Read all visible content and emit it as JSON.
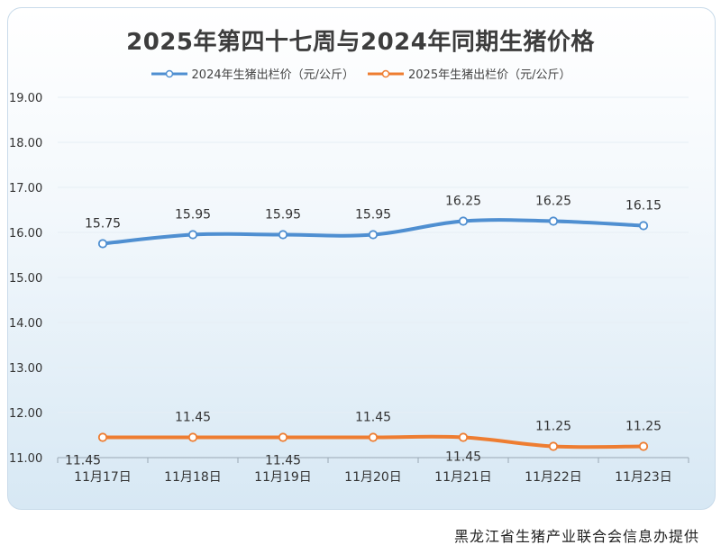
{
  "chart_data": {
    "type": "line",
    "title": "2025年第四十七周与2024年同期生猪价格",
    "categories": [
      "11月17日",
      "11月18日",
      "11月19日",
      "11月20日",
      "11月21日",
      "11月22日",
      "11月23日"
    ],
    "series": [
      {
        "name": "2024年生猪出栏价（元/公斤）",
        "color": "#4f8fd1",
        "values": [
          15.75,
          15.95,
          15.95,
          15.95,
          16.25,
          16.25,
          16.15
        ],
        "labels": [
          "15.75",
          "15.95",
          "15.95",
          "15.95",
          "16.25",
          "16.25",
          "16.15"
        ]
      },
      {
        "name": "2025年生猪出栏价（元/公斤）",
        "color": "#ee7d31",
        "values": [
          11.45,
          11.45,
          11.45,
          11.45,
          11.45,
          11.25,
          11.25
        ],
        "labels": [
          "11.45",
          "11.45",
          "11.45",
          "11.45",
          "11.45",
          "11.25",
          "11.25"
        ]
      }
    ],
    "yticks": [
      "11.00",
      "12.00",
      "13.00",
      "14.00",
      "15.00",
      "16.00",
      "17.00",
      "18.00",
      "19.00"
    ],
    "ylim": [
      11,
      19
    ],
    "grid": true,
    "legend_position": "top"
  },
  "footer": {
    "source": "黑龙江省生猪产业联合会信息办提供"
  }
}
